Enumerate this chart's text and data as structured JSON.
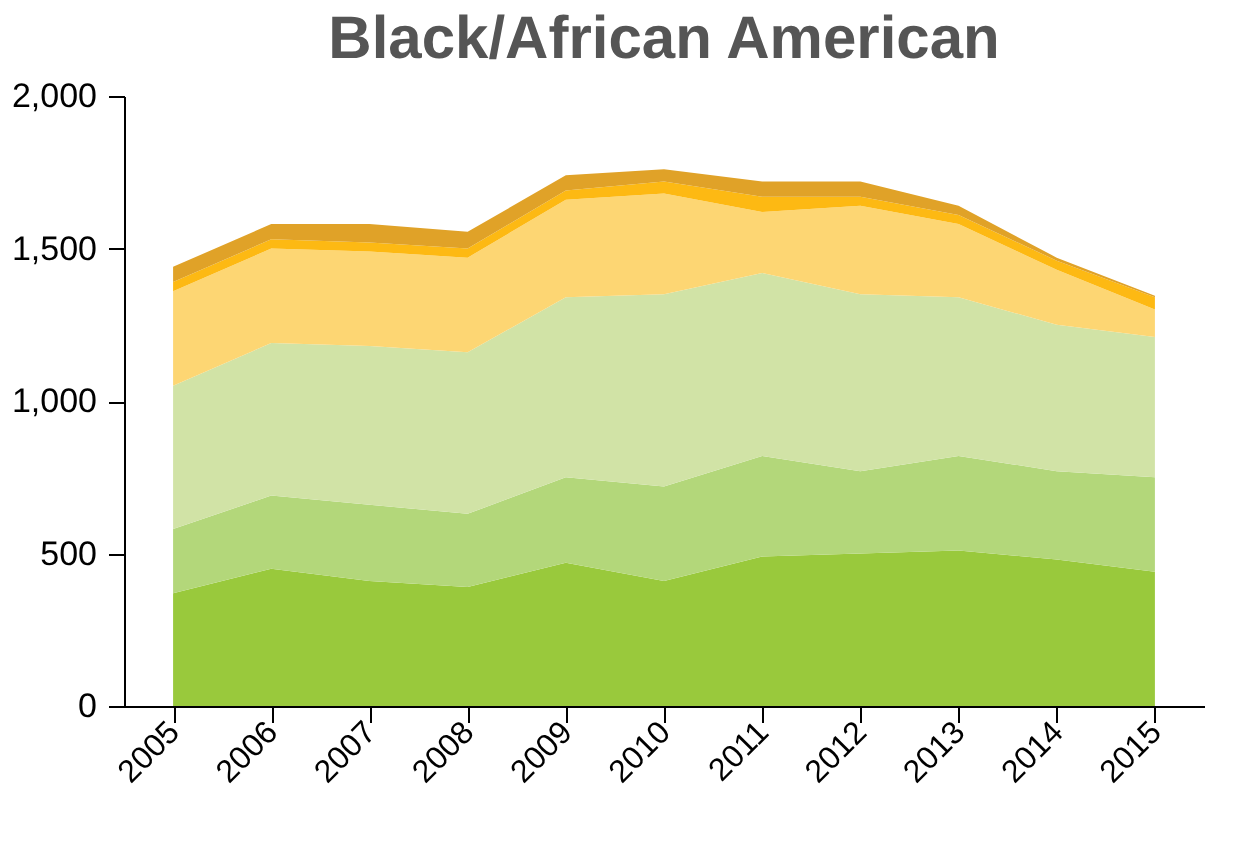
{
  "chart_data": {
    "type": "area",
    "title": "Black/African American",
    "stacked": true,
    "legend": false,
    "grid": false,
    "categories": [
      "2005",
      "2006",
      "2007",
      "2008",
      "2009",
      "2010",
      "2011",
      "2012",
      "2013",
      "2014",
      "2015"
    ],
    "ylim": [
      0,
      2000
    ],
    "yticks": [
      0,
      500,
      {
        "value": 1000,
        "label": "1,000"
      },
      {
        "value": 1500,
        "label": "1,500"
      },
      {
        "value": 2000,
        "label": "2,000"
      }
    ],
    "series": [
      {
        "color": "#99c93c",
        "values": [
          370,
          450,
          410,
          390,
          470,
          410,
          490,
          500,
          510,
          480,
          440
        ]
      },
      {
        "color": "#b3d77a",
        "values": [
          210,
          240,
          250,
          240,
          280,
          310,
          330,
          270,
          310,
          290,
          310
        ]
      },
      {
        "color": "#d1e3a6",
        "values": [
          470,
          500,
          520,
          530,
          590,
          630,
          600,
          580,
          520,
          480,
          460
        ]
      },
      {
        "color": "#fdd673",
        "values": [
          310,
          310,
          310,
          310,
          320,
          330,
          200,
          290,
          240,
          180,
          90
        ]
      },
      {
        "color": "#fdb913",
        "values": [
          30,
          30,
          30,
          30,
          30,
          40,
          50,
          30,
          30,
          30,
          40
        ]
      },
      {
        "color": "#e0a228",
        "values": [
          50,
          50,
          60,
          55,
          50,
          40,
          50,
          50,
          30,
          10,
          5
        ]
      }
    ]
  }
}
